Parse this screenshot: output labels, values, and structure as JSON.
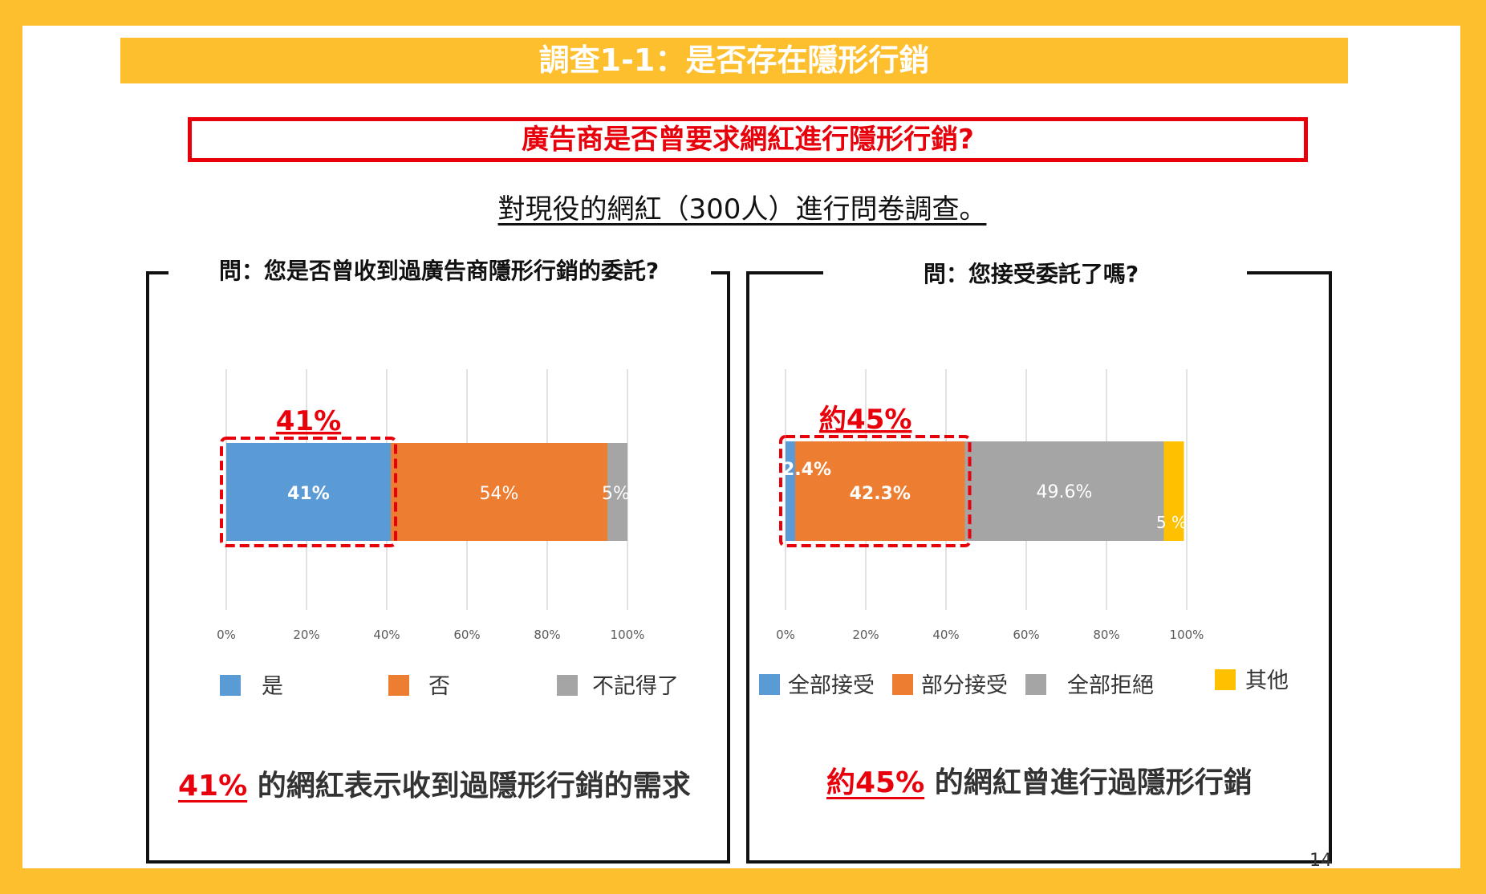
{
  "title": "調查1-1：是否存在隱形行銷",
  "main_question": "廣告商是否曾要求網紅進行隱形行銷?",
  "subtitle": "對現役的網紅（300人）進行問卷調查。",
  "page_number": "14",
  "colors": {
    "accent_yellow": "#FDBF2D",
    "highlight_red": "#E8000B",
    "blue": "#5B9BD5",
    "orange": "#ED7D31",
    "gray": "#A5A5A5",
    "yellow": "#FFC000"
  },
  "left": {
    "question": "問：您是否曾收到過廣告商隱形行銷的委託?",
    "callout": "41%",
    "legend": [
      "是",
      "否",
      "不記得了"
    ],
    "conclusion_highlight": "41%",
    "conclusion_text": " 的網紅表示收到過隱形行銷的需求"
  },
  "right": {
    "question": "問：您接受委託了嗎?",
    "callout": "約45%",
    "legend": [
      "全部接受",
      "部分接受",
      "全部拒絕",
      "其他"
    ],
    "conclusion_highlight": "約45%",
    "conclusion_text": " 的網紅曾進行過隱形行銷"
  },
  "chart_data": [
    {
      "type": "bar",
      "orientation": "horizontal-stacked-100",
      "title": "問：您是否曾收到過廣告商隱形行銷的委託?",
      "categories": [
        "是",
        "否",
        "不記得了"
      ],
      "values": [
        41,
        54,
        5
      ],
      "data_labels": [
        "41%",
        "54%",
        "5%"
      ],
      "xlim": [
        0,
        100
      ],
      "xticks": [
        "0%",
        "20%",
        "40%",
        "60%",
        "80%",
        "100%"
      ],
      "grid": true,
      "legend_position": "bottom"
    },
    {
      "type": "bar",
      "orientation": "horizontal-stacked-100",
      "title": "問：您接受委託了嗎?",
      "categories": [
        "全部接受",
        "部分接受",
        "全部拒絕",
        "其他"
      ],
      "values": [
        2.4,
        42.3,
        49.6,
        5
      ],
      "data_labels": [
        "2.4%",
        "42.3%",
        "49.6%",
        "5 %"
      ],
      "xlim": [
        0,
        100
      ],
      "xticks": [
        "0%",
        "20%",
        "40%",
        "60%",
        "80%",
        "100%"
      ],
      "grid": true,
      "legend_position": "bottom"
    }
  ]
}
